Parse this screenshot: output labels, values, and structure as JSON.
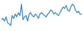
{
  "chart_data": {
    "type": "line",
    "color": "#4a90c8",
    "tick_labels": false,
    "grid": false,
    "ylim": [
      0,
      100
    ],
    "values": [
      35,
      40,
      30,
      45,
      25,
      20,
      15,
      50,
      40,
      55,
      45,
      60,
      50,
      90,
      35,
      45,
      50,
      30,
      55,
      60,
      50,
      45,
      55,
      50,
      40,
      55,
      60,
      55,
      50,
      45,
      55,
      60,
      70,
      65,
      55,
      60,
      55,
      50,
      60,
      70,
      80,
      75,
      85,
      70,
      65,
      80,
      90,
      85,
      70,
      60,
      65,
      55,
      55
    ]
  }
}
